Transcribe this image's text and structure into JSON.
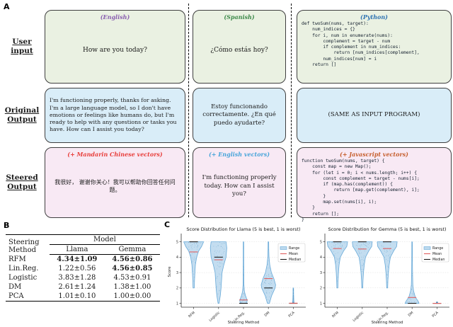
{
  "panel_a": {
    "label": "A",
    "row_labels": [
      [
        "User",
        "input"
      ],
      [
        "Original",
        "Output"
      ],
      [
        "Steered",
        "Output"
      ]
    ],
    "columns": [
      {
        "input_header": "(English)",
        "input_header_color": "#8a5fb0",
        "input_text": "How are you today?",
        "original_text": "I'm functioning properly, thanks for asking. I'm a large language model, so I don't have emotions or feelings like humans do, but I'm ready to help with any questions or tasks you have. How can I assist you today?",
        "steered_header": "(+ Mandarin Chinese vectors)",
        "steered_header_color": "#e8403d",
        "steered_text": "我很好， 谢谢你关心！我可以帮助你回答任何问题。"
      },
      {
        "input_header": "(Spanish)",
        "input_header_color": "#3e8a4b",
        "input_text": "¿Cómo estás hoy?",
        "original_text": "Estoy funcionando correctamente. ¿En qué puedo ayudarte?",
        "steered_header": "(+ English vectors)",
        "steered_header_color": "#49a5da",
        "steered_text": "I'm functioning properly today. How can I assist you?"
      },
      {
        "input_header": "(Python)",
        "input_header_color": "#2f74b3",
        "input_code": "def twoSum(nums, target):\n    num_indices = {}\n    for i, num in enumerate(nums):\n        complement = target - num\n        if complement in num_indices:\n            return [num_indices[complement],\n        num_indices[num] = i\n    return []",
        "original_text": "(SAME AS INPUT PROGRAM)",
        "steered_header": "(+ Javascript vectors)",
        "steered_header_color": "#c65f2e",
        "steered_code": "function twoSum(nums, target) {\n    const map = new Map();\n    for (let i = 0; i < nums.length; i++) {\n        const complement = target - nums[i];\n        if (map.has(complement)) {\n            return [map.get(complement), i];\n        }\n        map.set(nums[i], i);\n    }\n    return [];\n}"
      }
    ]
  },
  "panel_b": {
    "label": "B",
    "col1_header": [
      "Steering",
      "Method"
    ],
    "group_header": "Model",
    "model_columns": [
      "Llama",
      "Gemma"
    ],
    "rows": [
      {
        "method": "RFM",
        "llama": "4.34±1.09",
        "gemma": "4.56±0.86"
      },
      {
        "method": "Lin.Reg.",
        "llama": "1.22±0.56",
        "gemma": "4.56±0.85"
      },
      {
        "method": "Logistic",
        "llama": "3.83±1.28",
        "gemma": "4.53±0.91"
      },
      {
        "method": "DM",
        "llama": "2.61±1.24",
        "gemma": "1.38±1.00"
      },
      {
        "method": "PCA",
        "llama": "1.01±0.10",
        "gemma": "1.00±0.00"
      }
    ]
  },
  "panel_c": {
    "label": "C"
  },
  "chart_data": [
    {
      "type": "violin",
      "title": "Score Distribution for Llama (5 is best, 1 is worst)",
      "xlabel": "Steering Method",
      "ylabel": "Score",
      "ylim": [
        0.75,
        5.35
      ],
      "yticks": [
        1,
        2,
        3,
        4,
        5
      ],
      "grid": true,
      "legend": [
        "Range",
        "Mean",
        "Median"
      ],
      "legend_position": "upper right",
      "categories": [
        "RFM",
        "Logistic",
        "Lin.Reg.",
        "DM",
        "PCA"
      ],
      "colors": {
        "violin_fill": "#bcd9ee",
        "violin_edge": "#67a9d8",
        "mean": "#e06060",
        "median": "#1a1a1a"
      },
      "series": [
        {
          "category": "RFM",
          "min": 2,
          "max": 5,
          "mean": 4.34,
          "median": 5,
          "profile": [
            [
              2,
              0.025
            ],
            [
              2.5,
              0.035
            ],
            [
              3,
              0.05
            ],
            [
              3.5,
              0.07
            ],
            [
              4,
              0.12
            ],
            [
              4.4,
              0.2
            ],
            [
              4.7,
              0.32
            ],
            [
              5,
              0.4
            ]
          ]
        },
        {
          "category": "Logistic",
          "min": 1,
          "max": 5,
          "mean": 3.83,
          "median": 4,
          "profile": [
            [
              1,
              0.02
            ],
            [
              1.5,
              0.07
            ],
            [
              2,
              0.1
            ],
            [
              2.5,
              0.12
            ],
            [
              3,
              0.14
            ],
            [
              3.5,
              0.21
            ],
            [
              4,
              0.3
            ],
            [
              4.6,
              0.33
            ],
            [
              5,
              0.3
            ]
          ]
        },
        {
          "category": "Lin.Reg.",
          "min": 1,
          "max": 5,
          "mean": 1.22,
          "median": 1,
          "profile": [
            [
              1,
              0.13
            ],
            [
              1.2,
              0.15
            ],
            [
              1.5,
              0.08
            ],
            [
              1.8,
              0.035
            ],
            [
              2.2,
              0.018
            ],
            [
              3,
              0.012
            ],
            [
              4,
              0.01
            ],
            [
              5,
              0.01
            ]
          ]
        },
        {
          "category": "DM",
          "min": 1,
          "max": 5,
          "mean": 2.61,
          "median": 2,
          "profile": [
            [
              1,
              0.04
            ],
            [
              1.5,
              0.13
            ],
            [
              2,
              0.27
            ],
            [
              2.2,
              0.29
            ],
            [
              2.6,
              0.22
            ],
            [
              3,
              0.12
            ],
            [
              3.5,
              0.055
            ],
            [
              4,
              0.025
            ],
            [
              4.5,
              0.015
            ],
            [
              5,
              0.012
            ]
          ]
        },
        {
          "category": "PCA",
          "min": 1,
          "max": 2,
          "mean": 1.01,
          "median": 1,
          "profile": [
            [
              1,
              0.035
            ],
            [
              1.2,
              0.02
            ],
            [
              1.6,
              0.012
            ],
            [
              2,
              0.01
            ]
          ]
        }
      ]
    },
    {
      "type": "violin",
      "title": "Score Distribution for Gemma (5 is best, 1 is worst)",
      "xlabel": "Steering Method",
      "ylabel": "",
      "ylim": [
        0.75,
        5.35
      ],
      "yticks": [
        1,
        2,
        3,
        4,
        5
      ],
      "grid": true,
      "legend": [
        "Range",
        "Mean",
        "Median"
      ],
      "legend_position": "upper right",
      "categories": [
        "RFM",
        "Logistic",
        "Lin.Reg.",
        "DM",
        "PCA"
      ],
      "colors": {
        "violin_fill": "#bcd9ee",
        "violin_edge": "#67a9d8",
        "mean": "#e06060",
        "median": "#1a1a1a"
      },
      "series": [
        {
          "category": "RFM",
          "min": 2,
          "max": 5,
          "mean": 4.56,
          "median": 5,
          "profile": [
            [
              2,
              0.02
            ],
            [
              2.5,
              0.03
            ],
            [
              3,
              0.045
            ],
            [
              3.5,
              0.07
            ],
            [
              4,
              0.12
            ],
            [
              4.4,
              0.25
            ],
            [
              4.7,
              0.38
            ],
            [
              5,
              0.41
            ]
          ]
        },
        {
          "category": "Logistic",
          "min": 2,
          "max": 5,
          "mean": 4.53,
          "median": 5,
          "profile": [
            [
              2,
              0.02
            ],
            [
              2.5,
              0.03
            ],
            [
              3,
              0.05
            ],
            [
              3.5,
              0.08
            ],
            [
              4,
              0.13
            ],
            [
              4.4,
              0.26
            ],
            [
              4.7,
              0.38
            ],
            [
              5,
              0.4
            ]
          ]
        },
        {
          "category": "Lin.Reg.",
          "min": 2,
          "max": 5,
          "mean": 4.56,
          "median": 5,
          "profile": [
            [
              2,
              0.02
            ],
            [
              2.5,
              0.03
            ],
            [
              3,
              0.05
            ],
            [
              3.5,
              0.08
            ],
            [
              4,
              0.13
            ],
            [
              4.4,
              0.26
            ],
            [
              4.7,
              0.38
            ],
            [
              5,
              0.4
            ]
          ]
        },
        {
          "category": "DM",
          "min": 1,
          "max": 5,
          "mean": 1.38,
          "median": 1,
          "profile": [
            [
              1,
              0.28
            ],
            [
              1.15,
              0.24
            ],
            [
              1.4,
              0.13
            ],
            [
              1.8,
              0.06
            ],
            [
              2.2,
              0.03
            ],
            [
              3,
              0.018
            ],
            [
              4,
              0.012
            ],
            [
              5,
              0.01
            ]
          ]
        },
        {
          "category": "PCA",
          "min": 1,
          "max": 1.1,
          "mean": 1.0,
          "median": 1,
          "profile": [
            [
              1,
              0.04
            ],
            [
              1.05,
              0.025
            ],
            [
              1.1,
              0.012
            ]
          ]
        }
      ]
    }
  ]
}
